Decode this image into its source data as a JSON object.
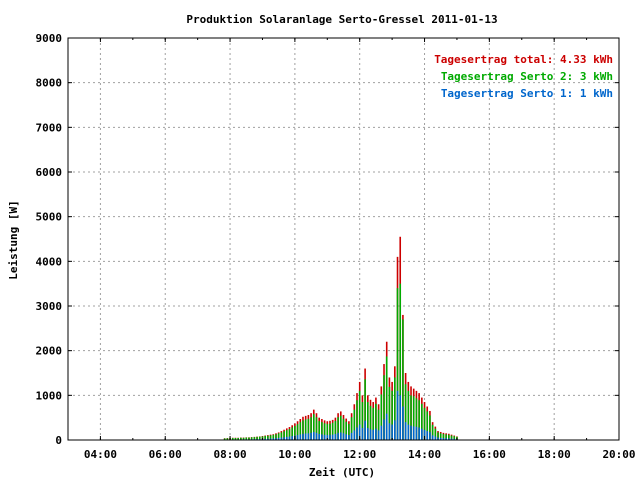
{
  "chart_data": {
    "type": "bar",
    "title": "Produktion Solaranlage Serto-Gressel 2011-01-13",
    "xlabel": "Zeit (UTC)",
    "ylabel": "Leistung [W]",
    "ylim": [
      0,
      9000
    ],
    "yticks": [
      "0",
      "1000",
      "2000",
      "3000",
      "4000",
      "5000",
      "6000",
      "7000",
      "8000",
      "9000"
    ],
    "xlim_hours": [
      3.0,
      20.0
    ],
    "xticks": [
      "04:00",
      "06:00",
      "08:00",
      "10:00",
      "12:00",
      "14:00",
      "16:00",
      "18:00",
      "20:00"
    ],
    "grid": true,
    "legend_position": "top-right",
    "legend": [
      {
        "label": "Tagesertrag total:",
        "value": "4.33 kWh",
        "color": "#cc0000"
      },
      {
        "label": "Tagesertrag Serto 2:",
        "value": "3 kWh",
        "color": "#00aa00"
      },
      {
        "label": "Tagesertrag Serto 1:",
        "value": "1 kWh",
        "color": "#0066cc"
      }
    ],
    "colors": {
      "total": "#cc0000",
      "serto2": "#00aa00",
      "serto1": "#0066cc"
    },
    "interval_minutes": 5,
    "series": [
      {
        "name": "Tagesertrag total",
        "start_time": "07:50",
        "values": [
          40,
          45,
          50,
          50,
          50,
          50,
          55,
          55,
          60,
          60,
          65,
          70,
          75,
          80,
          90,
          100,
          110,
          120,
          130,
          150,
          170,
          200,
          230,
          260,
          290,
          330,
          370,
          420,
          470,
          520,
          540,
          560,
          600,
          680,
          600,
          500,
          470,
          440,
          420,
          430,
          450,
          500,
          600,
          640,
          560,
          480,
          420,
          600,
          800,
          1050,
          1300,
          1000,
          1600,
          1000,
          900,
          850,
          950,
          800,
          1200,
          1700,
          2200,
          1400,
          1300,
          1650,
          4100,
          4550,
          2800,
          1500,
          1300,
          1200,
          1150,
          1100,
          1050,
          950,
          850,
          750,
          650,
          400,
          300,
          200,
          180,
          160,
          150,
          140,
          120,
          100,
          80
        ]
      },
      {
        "name": "Tagesertrag Serto 2",
        "start_time": "07:50",
        "values": [
          35,
          40,
          45,
          45,
          45,
          45,
          50,
          50,
          55,
          55,
          60,
          65,
          70,
          75,
          80,
          90,
          95,
          105,
          115,
          130,
          150,
          170,
          195,
          220,
          245,
          280,
          315,
          355,
          400,
          440,
          460,
          475,
          510,
          580,
          510,
          425,
          400,
          375,
          360,
          365,
          385,
          425,
          510,
          545,
          475,
          410,
          360,
          510,
          680,
          890,
          1100,
          850,
          1360,
          850,
          765,
          720,
          810,
          680,
          1020,
          1450,
          1870,
          1190,
          1100,
          1400,
          3400,
          3500,
          2700,
          1250,
          1100,
          1000,
          980,
          935,
          890,
          810,
          720,
          640,
          550,
          340,
          255,
          170,
          150,
          135,
          125,
          115,
          100,
          85,
          70
        ]
      },
      {
        "name": "Tagesertrag Serto 1",
        "start_time": "07:50",
        "values": [
          10,
          10,
          12,
          12,
          12,
          12,
          14,
          14,
          15,
          15,
          16,
          18,
          20,
          21,
          24,
          27,
          30,
          33,
          36,
          42,
          48,
          55,
          62,
          70,
          78,
          88,
          98,
          110,
          125,
          140,
          145,
          150,
          160,
          180,
          160,
          135,
          125,
          115,
          110,
          115,
          120,
          135,
          160,
          170,
          150,
          128,
          112,
          160,
          215,
          280,
          345,
          270,
          430,
          270,
          240,
          225,
          255,
          215,
          320,
          460,
          590,
          375,
          345,
          440,
          1100,
          1000,
          750,
          400,
          345,
          320,
          305,
          295,
          280,
          255,
          225,
          200,
          175,
          105,
          80,
          55,
          48,
          42,
          40,
          36,
          32,
          26,
          20
        ]
      }
    ]
  }
}
